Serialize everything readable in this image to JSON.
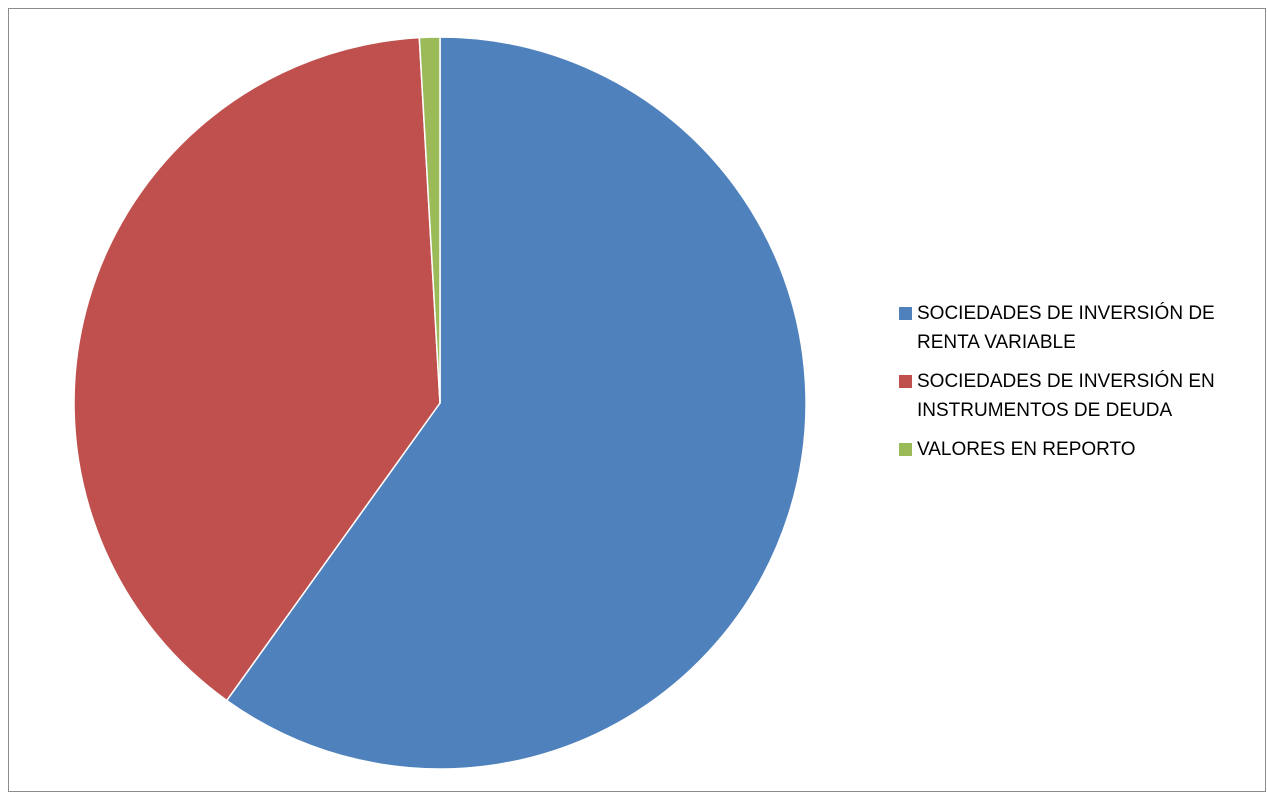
{
  "chart_data": {
    "type": "pie",
    "categories": [
      "SOCIEDADES DE INVERSIÓN DE RENTA VARIABLE",
      "SOCIEDADES DE INVERSIÓN EN INSTRUMENTOS DE DEUDA",
      "VALORES EN REPORTO"
    ],
    "values": [
      59.9,
      39.2,
      0.9
    ],
    "colors": [
      "#4F81BD",
      "#C0504D",
      "#9BBB59"
    ],
    "start_angle_deg": 0,
    "direction": "clockwise",
    "legend_position": "right"
  },
  "legend": {
    "items": [
      {
        "label": "SOCIEDADES DE INVERSIÓN DE RENTA VARIABLE",
        "color": "#4F81BD"
      },
      {
        "label": "SOCIEDADES DE INVERSIÓN EN INSTRUMENTOS DE DEUDA",
        "color": "#C0504D"
      },
      {
        "label": "VALORES EN REPORTO",
        "color": "#9BBB59"
      }
    ]
  }
}
